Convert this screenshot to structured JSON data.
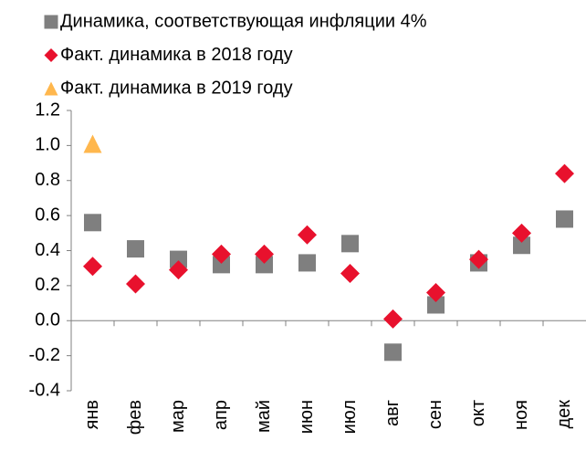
{
  "chart_data": {
    "type": "scatter",
    "categories": [
      "янв",
      "фев",
      "мар",
      "апр",
      "май",
      "июн",
      "июл",
      "авг",
      "сен",
      "окт",
      "ноя",
      "дек"
    ],
    "series": [
      {
        "name": "Динамика, соответствующая инфляции 4%",
        "color": "#7f7f7f",
        "marker": "square",
        "values": [
          0.56,
          0.41,
          0.35,
          0.32,
          0.32,
          0.33,
          0.44,
          -0.18,
          0.09,
          0.33,
          0.43,
          0.58
        ]
      },
      {
        "name": "Факт. динамика в 2018 году",
        "color": "#e8112d",
        "marker": "diamond",
        "values": [
          0.31,
          0.21,
          0.29,
          0.38,
          0.38,
          0.49,
          0.27,
          0.01,
          0.16,
          0.35,
          0.5,
          0.84
        ]
      },
      {
        "name": "Факт. динамика в 2019 году",
        "color": "#ffb74d",
        "marker": "triangle",
        "values": [
          1.01,
          null,
          null,
          null,
          null,
          null,
          null,
          null,
          null,
          null,
          null,
          null
        ]
      }
    ],
    "ylim": [
      -0.4,
      1.2
    ],
    "yticks": [
      -0.4,
      -0.2,
      0.2,
      0.4,
      0.6,
      0.8,
      1.2,
      {
        "value": 0,
        "label": "0.0"
      },
      {
        "value": 1,
        "label": "1.0"
      }
    ],
    "grid": false
  }
}
